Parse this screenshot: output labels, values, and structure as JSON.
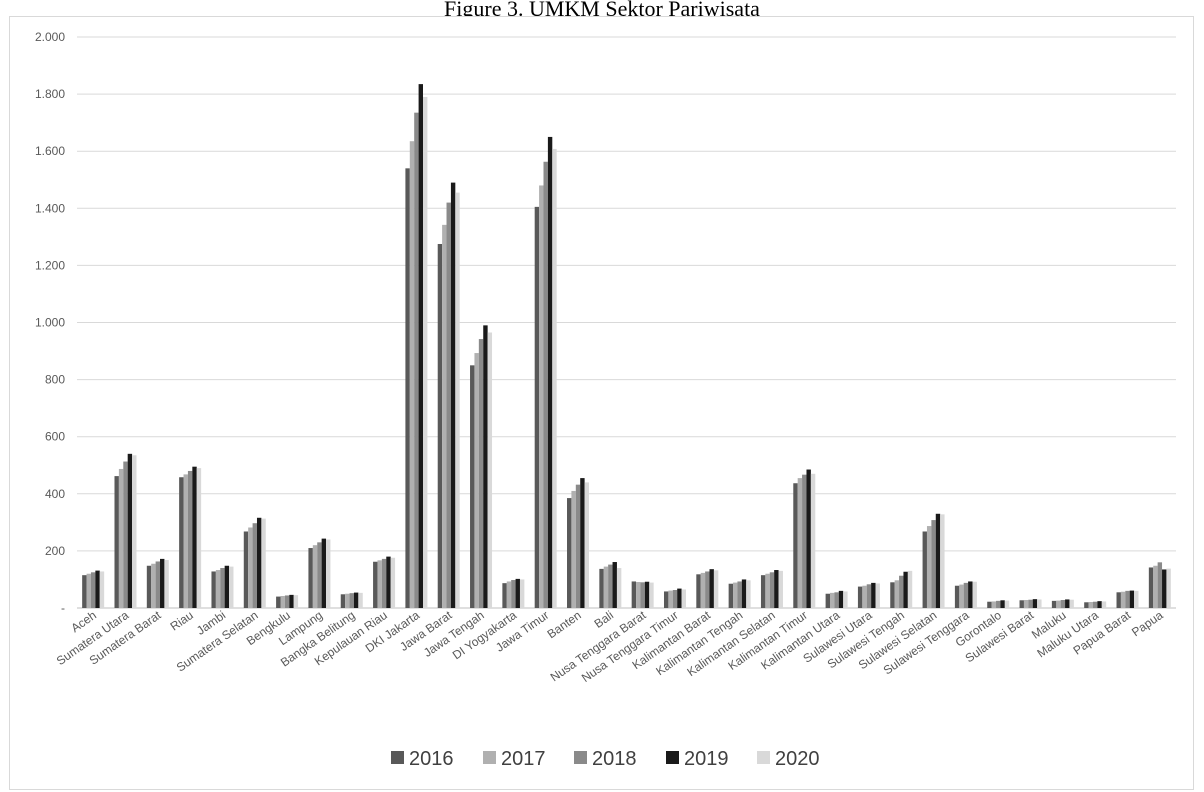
{
  "title": "Figure 3. UMKM Sektor Pariwisata",
  "chart_data": {
    "type": "bar",
    "title": "Figure 3. UMKM Sektor Pariwisata",
    "xlabel": "",
    "ylabel": "",
    "ylim": [
      0,
      2000
    ],
    "yticks": [
      0,
      200,
      400,
      600,
      800,
      1000,
      1200,
      1400,
      1600,
      1800,
      2000
    ],
    "ytick_labels": [
      "-",
      "200",
      "400",
      "600",
      "800",
      "1.000",
      "1.200",
      "1.400",
      "1.600",
      "1.800",
      "2.000"
    ],
    "grid": true,
    "legend": "bottom",
    "categories": [
      "Aceh",
      "Sumatera Utara",
      "Sumatera Barat",
      "Riau",
      "Jambi",
      "Sumatera Selatan",
      "Bengkulu",
      "Lampung",
      "Bangka Belitung",
      "Kepulauan Riau",
      "DKI Jakarta",
      "Jawa Barat",
      "Jawa Tengah",
      "DI Yogyakarta",
      "Jawa Timur",
      "Banten",
      "Bali",
      "Nusa Tenggara Barat",
      "Nusa Tenggara Timur",
      "Kalimantan Barat",
      "Kalimantan Tengah",
      "Kalimantan Selatan",
      "Kalimantan Timur",
      "Kalimantan Utara",
      "Sulawesi Utara",
      "Sulawesi Tengah",
      "Sulawesi Selatan",
      "Sulawesi Tenggara",
      "Gorontalo",
      "Sulawesi Barat",
      "Maluku",
      "Maluku Utara",
      "Papua Barat",
      "Papua"
    ],
    "series": [
      {
        "name": "2016",
        "color": "#595959",
        "values": [
          115,
          462,
          148,
          458,
          128,
          268,
          40,
          210,
          48,
          162,
          1540,
          1275,
          850,
          87,
          1405,
          385,
          137,
          93,
          58,
          118,
          85,
          115,
          437,
          50,
          75,
          90,
          268,
          78,
          22,
          27,
          25,
          20,
          55,
          142
        ]
      },
      {
        "name": "2017",
        "color": "#b0b0b0",
        "values": [
          120,
          487,
          155,
          468,
          133,
          282,
          42,
          220,
          50,
          167,
          1635,
          1342,
          893,
          93,
          1480,
          410,
          145,
          91,
          61,
          123,
          89,
          120,
          455,
          53,
          78,
          97,
          287,
          82,
          23,
          28,
          26,
          21,
          57,
          148
        ]
      },
      {
        "name": "2018",
        "color": "#8a8a8a",
        "values": [
          125,
          513,
          163,
          480,
          140,
          297,
          44,
          230,
          52,
          172,
          1735,
          1420,
          942,
          98,
          1563,
          432,
          152,
          90,
          63,
          128,
          93,
          125,
          467,
          55,
          83,
          113,
          308,
          88,
          25,
          29,
          28,
          22,
          60,
          160
        ]
      },
      {
        "name": "2019",
        "color": "#1a1a1a",
        "values": [
          131,
          540,
          172,
          495,
          148,
          316,
          46,
          243,
          54,
          180,
          1835,
          1490,
          990,
          102,
          1650,
          455,
          161,
          92,
          68,
          136,
          100,
          133,
          485,
          60,
          88,
          127,
          330,
          93,
          27,
          31,
          30,
          24,
          61,
          135
        ]
      },
      {
        "name": "2020",
        "color": "#d9d9d9",
        "values": [
          128,
          535,
          168,
          490,
          145,
          313,
          45,
          240,
          53,
          176,
          1790,
          1455,
          965,
          100,
          1608,
          440,
          140,
          89,
          65,
          132,
          97,
          130,
          470,
          58,
          86,
          130,
          328,
          92,
          26,
          30,
          29,
          23,
          60,
          138
        ]
      }
    ]
  }
}
